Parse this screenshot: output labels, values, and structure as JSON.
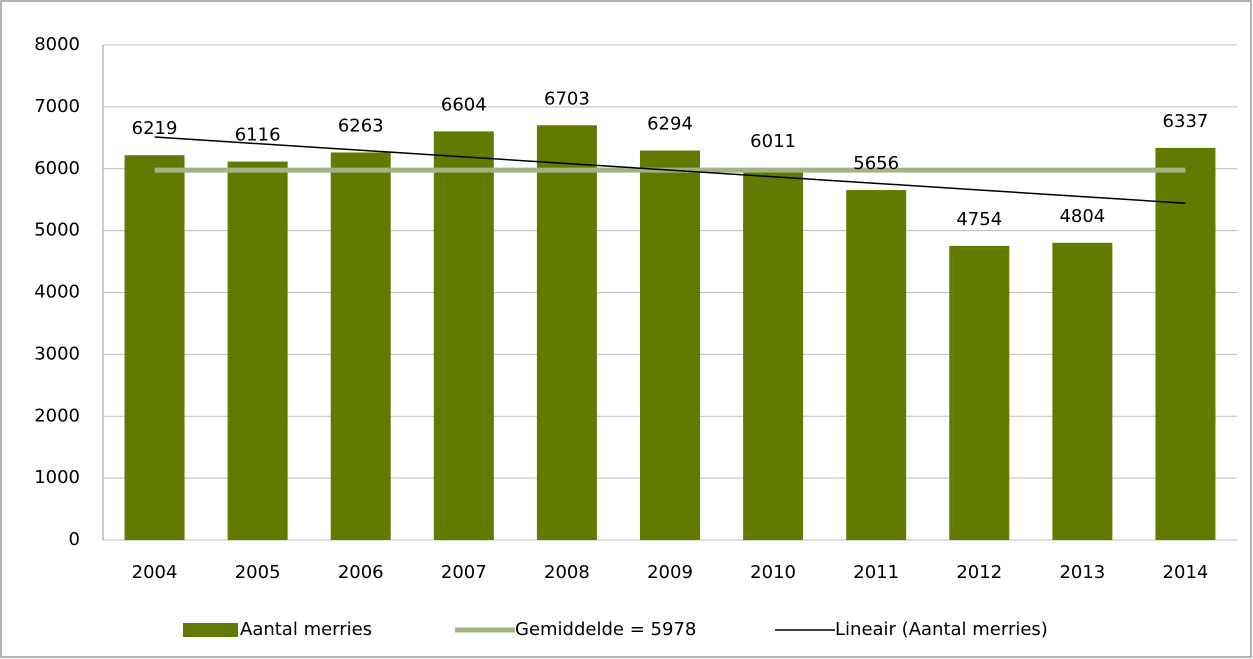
{
  "chart_data": {
    "type": "bar",
    "categories": [
      "2004",
      "2005",
      "2006",
      "2007",
      "2008",
      "2009",
      "2010",
      "2011",
      "2012",
      "2013",
      "2014"
    ],
    "series": [
      {
        "name": "Aantal merries",
        "type": "bar",
        "color": "#627a00",
        "values": [
          6219,
          6116,
          6263,
          6604,
          6703,
          6294,
          6011,
          5656,
          4754,
          4804,
          6337
        ],
        "show_values": true
      },
      {
        "name": "Gemiddelde = 5978",
        "type": "line",
        "color": "#a3b387",
        "width": 5,
        "values": [
          5978,
          5978,
          5978,
          5978,
          5978,
          5978,
          5978,
          5978,
          5978,
          5978,
          5978
        ]
      },
      {
        "name": "Lineair (Aantal merries)",
        "type": "line",
        "color": "#000000",
        "width": 1.5,
        "values": [
          6513,
          6406,
          6299,
          6192,
          6085,
          5978,
          5871,
          5764,
          5657,
          5550,
          5443
        ]
      }
    ],
    "ylim": [
      0,
      8000
    ],
    "yticks": [
      0,
      1000,
      2000,
      3000,
      4000,
      5000,
      6000,
      7000,
      8000
    ],
    "grid": true,
    "legend": "bottom"
  }
}
